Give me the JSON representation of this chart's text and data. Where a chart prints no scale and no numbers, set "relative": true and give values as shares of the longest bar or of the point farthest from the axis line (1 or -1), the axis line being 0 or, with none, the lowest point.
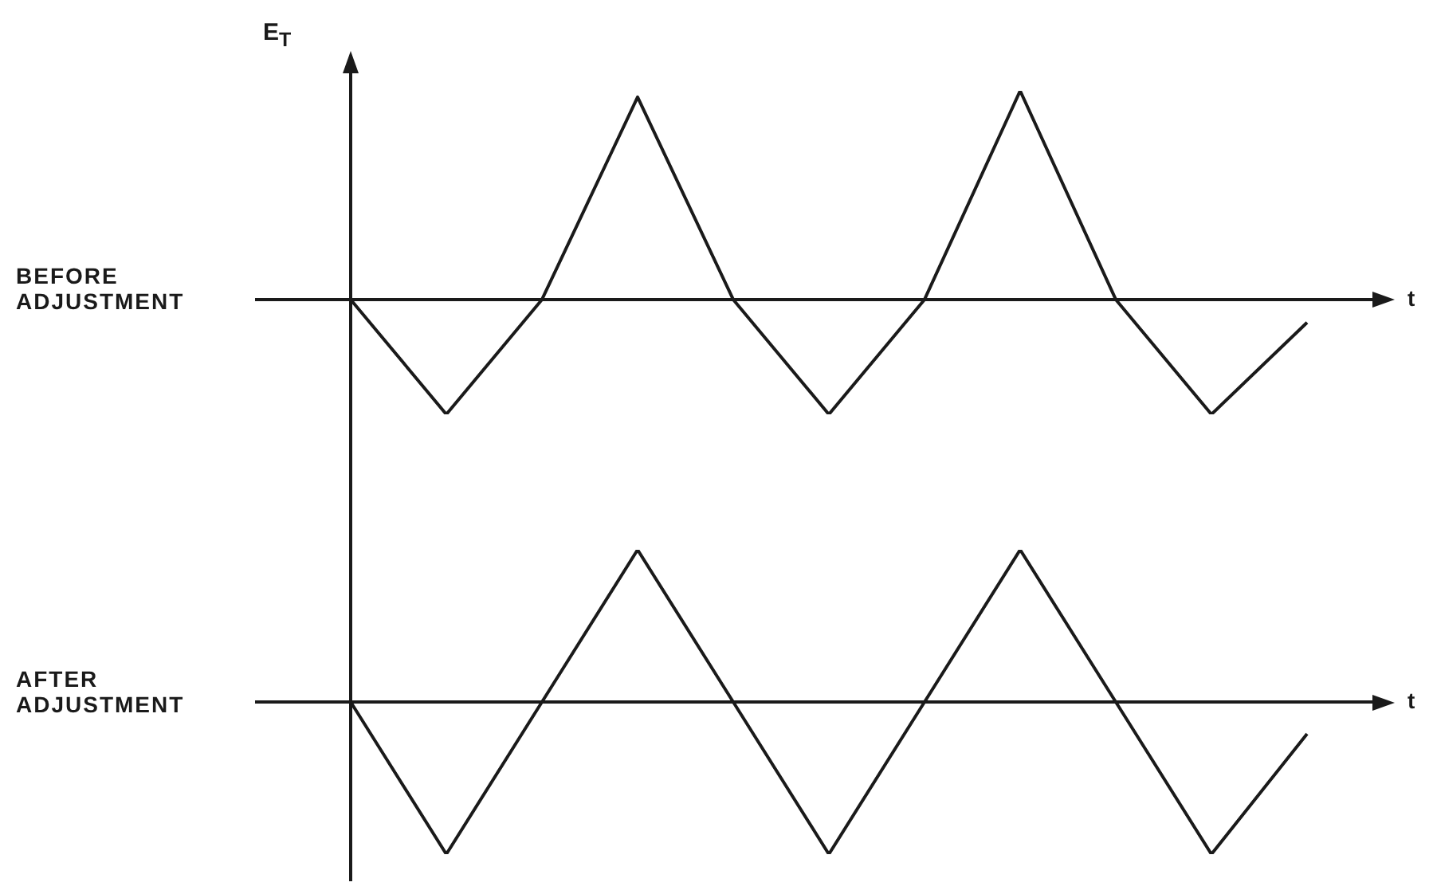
{
  "chart_data": [
    {
      "type": "line",
      "title": "BEFORE ADJUSTMENT",
      "ylabel": "E$_{T}$",
      "xlabel": "t",
      "relative": true,
      "grid": false,
      "legend": false,
      "marker": "none",
      "categories": [
        null,
        null,
        null,
        null,
        null,
        null,
        null,
        null,
        null,
        null,
        null
      ],
      "series": [
        {
          "color": "#1a1a1a",
          "values": [
            0,
            -0.55,
            0,
            0.97,
            0,
            -0.55,
            0,
            1,
            0,
            -0.55,
            -0.11
          ]
        }
      ]
    },
    {
      "type": "line",
      "title": "AFTER ADJUSTMENT",
      "xlabel": "t",
      "relative": true,
      "grid": false,
      "legend": false,
      "marker": "none",
      "categories": [
        null,
        null,
        null,
        null,
        null,
        null,
        null,
        null,
        null,
        null,
        null
      ],
      "series": [
        {
          "color": "#1a1a1a",
          "values": [
            0,
            -1,
            0,
            1,
            0,
            -1,
            0,
            1,
            0,
            -1,
            -0.21
          ]
        }
      ]
    }
  ]
}
